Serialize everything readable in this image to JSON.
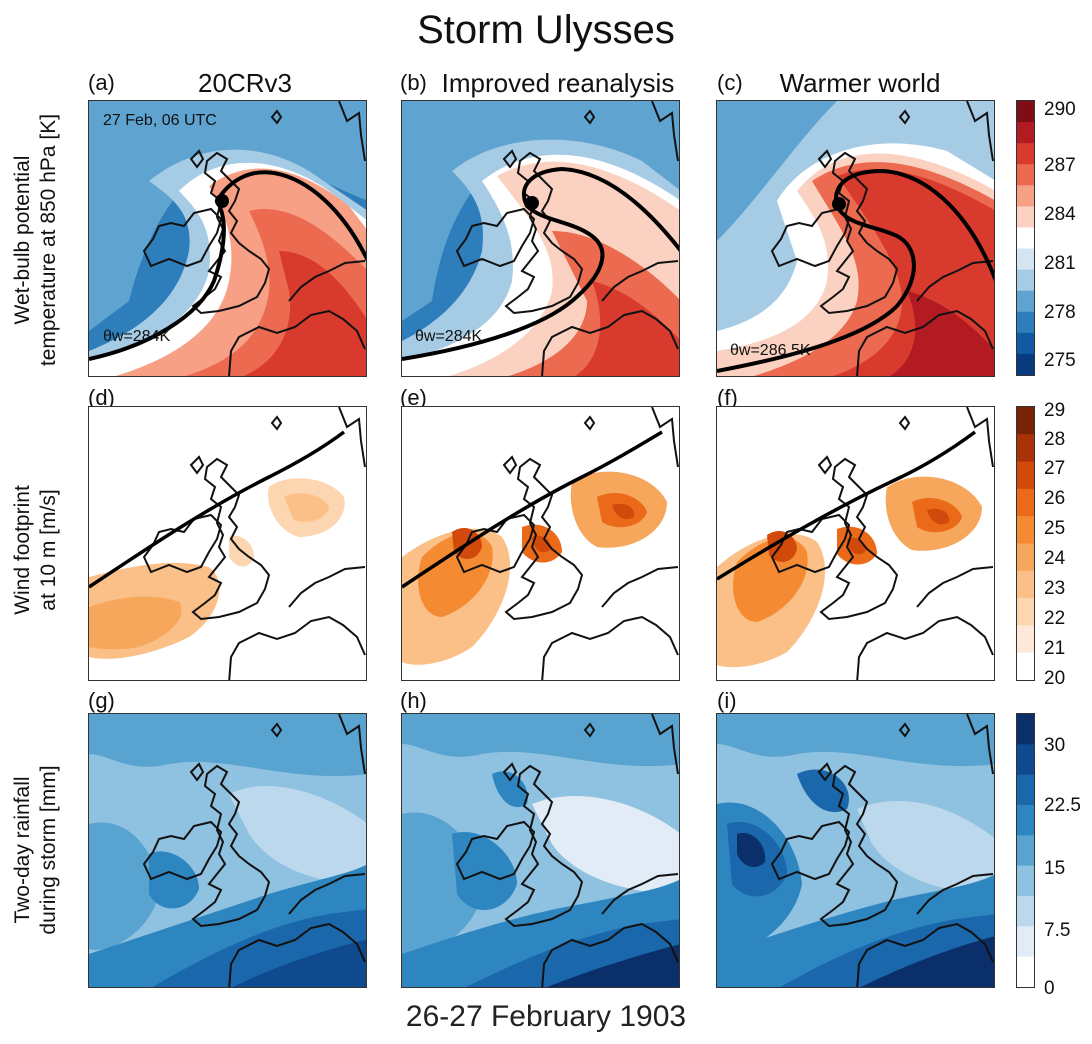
{
  "title": "Storm Ulysses",
  "footer": "26-27 February 1903",
  "columns": [
    {
      "label": "(a)",
      "title": "20CRv3"
    },
    {
      "label": "(b)",
      "title": "Improved reanalysis"
    },
    {
      "label": "(c)",
      "title": "Warmer world"
    }
  ],
  "panel_labels": [
    "(a)",
    "(b)",
    "(c)",
    "(d)",
    "(e)",
    "(f)",
    "(g)",
    "(h)",
    "(i)"
  ],
  "rows": [
    {
      "ylabel_line1": "Wet-bulb potential",
      "ylabel_line2": "temperature at 850 hPa [K]"
    },
    {
      "ylabel_line1": "Wind footprint",
      "ylabel_line2": "at 10 m [m/s]"
    },
    {
      "ylabel_line1": "Two-day rainfall",
      "ylabel_line2": "during storm [mm]"
    }
  ],
  "annotations": {
    "time": "27 Feb, 06 UTC",
    "theta_a": "θw=284K",
    "theta_b": "θw=284K",
    "theta_c": "θw=286.5K"
  },
  "colorbars": [
    {
      "ticks": [
        "290",
        "287",
        "284",
        "281",
        "278",
        "275"
      ],
      "colors": [
        "#7f0d15",
        "#b31b22",
        "#d83a2e",
        "#ec6a4f",
        "#f7a086",
        "#fbd2c1",
        "#ffffff",
        "#d4e5f1",
        "#a6cbe4",
        "#5fa4d1",
        "#2e7ebc",
        "#0f5aa2",
        "#083a80"
      ]
    },
    {
      "ticks": [
        "29",
        "28",
        "27",
        "26",
        "25",
        "24",
        "23",
        "22",
        "21",
        "20"
      ],
      "colors": [
        "#7a2205",
        "#a93306",
        "#d14a0b",
        "#ea6a1a",
        "#f48a32",
        "#f7a75c",
        "#fac088",
        "#fcd6b1",
        "#fee9d8",
        "#ffffff"
      ]
    },
    {
      "ticks": [
        "30",
        "22.5",
        "15",
        "7.5",
        "0"
      ],
      "colors": [
        "#0a2f6b",
        "#0f4a8f",
        "#1a67ab",
        "#2d86c0",
        "#58a3d0",
        "#8fc1e0",
        "#bcd8ec",
        "#e1ecf6",
        "#ffffff"
      ]
    }
  ]
}
